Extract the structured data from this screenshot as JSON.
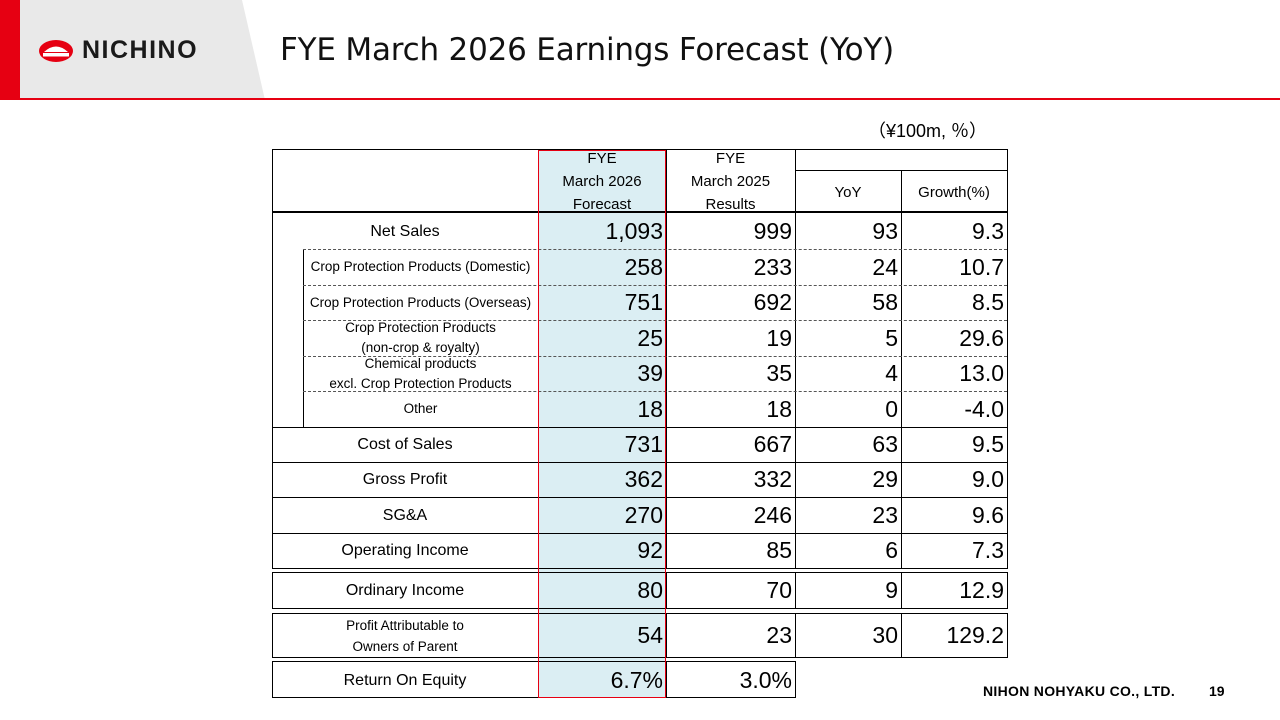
{
  "header": {
    "logo_text": "NICHINO",
    "title": "FYE March 2026 Earnings Forecast (YoY)",
    "brand_color": "#e60012"
  },
  "unit_note": "（¥100m, ％）",
  "table": {
    "columns": {
      "forecast": [
        "FYE",
        "March 2026",
        "Forecast"
      ],
      "results": [
        "FYE",
        "March 2025",
        "Results"
      ],
      "yoy": "YoY",
      "growth": "Growth(%)"
    },
    "rows": [
      {
        "label": "Net Sales",
        "forecast": "1,093",
        "results": "999",
        "yoy": "93",
        "growth": "9.3"
      },
      {
        "label": "Crop Protection Products (Domestic)",
        "forecast": "258",
        "results": "233",
        "yoy": "24",
        "growth": "10.7"
      },
      {
        "label": "Crop Protection Products (Overseas)",
        "forecast": "751",
        "results": "692",
        "yoy": "58",
        "growth": "8.5"
      },
      {
        "label": [
          "Crop Protection Products",
          "(non-crop & royalty)"
        ],
        "forecast": "25",
        "results": "19",
        "yoy": "5",
        "growth": "29.6"
      },
      {
        "label": [
          "Chemical products",
          "excl. Crop Protection Products"
        ],
        "forecast": "39",
        "results": "35",
        "yoy": "4",
        "growth": "13.0"
      },
      {
        "label": "Other",
        "forecast": "18",
        "results": "18",
        "yoy": "0",
        "growth": "-4.0"
      },
      {
        "label": "Cost of Sales",
        "forecast": "731",
        "results": "667",
        "yoy": "63",
        "growth": "9.5"
      },
      {
        "label": "Gross Profit",
        "forecast": "362",
        "results": "332",
        "yoy": "29",
        "growth": "9.0"
      },
      {
        "label": "SG&A",
        "forecast": "270",
        "results": "246",
        "yoy": "23",
        "growth": "9.6"
      },
      {
        "label": "Operating Income",
        "forecast": "92",
        "results": "85",
        "yoy": "6",
        "growth": "7.3"
      },
      {
        "label": "Ordinary Income",
        "forecast": "80",
        "results": "70",
        "yoy": "9",
        "growth": "12.9"
      },
      {
        "label": [
          "Profit Attributable to",
          "Owners of Parent"
        ],
        "forecast": "54",
        "results": "23",
        "yoy": "30",
        "growth": "129.2"
      },
      {
        "label": "Return On Equity",
        "forecast": "6.7%",
        "results": "3.0%"
      }
    ]
  },
  "footer": {
    "company": "NIHON NOHYAKU CO., LTD.",
    "page": "19"
  }
}
